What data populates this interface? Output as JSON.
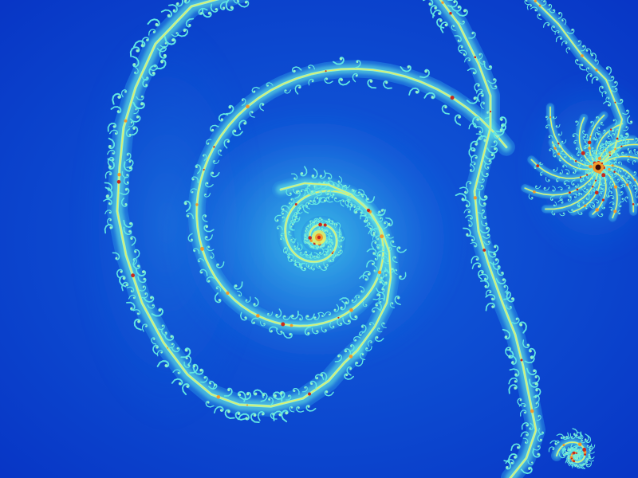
{
  "image": {
    "palette": {
      "background_deep": "#0733c4",
      "background_mid": "#1260dc",
      "glow_inner": "#40c8e8",
      "glow_outer": "#2a8fe4",
      "filament_cyan": "#62e6e2",
      "filament_light": "#9cf2c4",
      "filament_yellow": "#e8ee60",
      "filament_orange": "#f29a2c",
      "filament_red": "#c8281c",
      "core_dark": "#3a0e08"
    },
    "shapes": [
      "main-spiral",
      "outer-arc",
      "right-spiral-cluster",
      "bottom-right-spiral"
    ]
  }
}
